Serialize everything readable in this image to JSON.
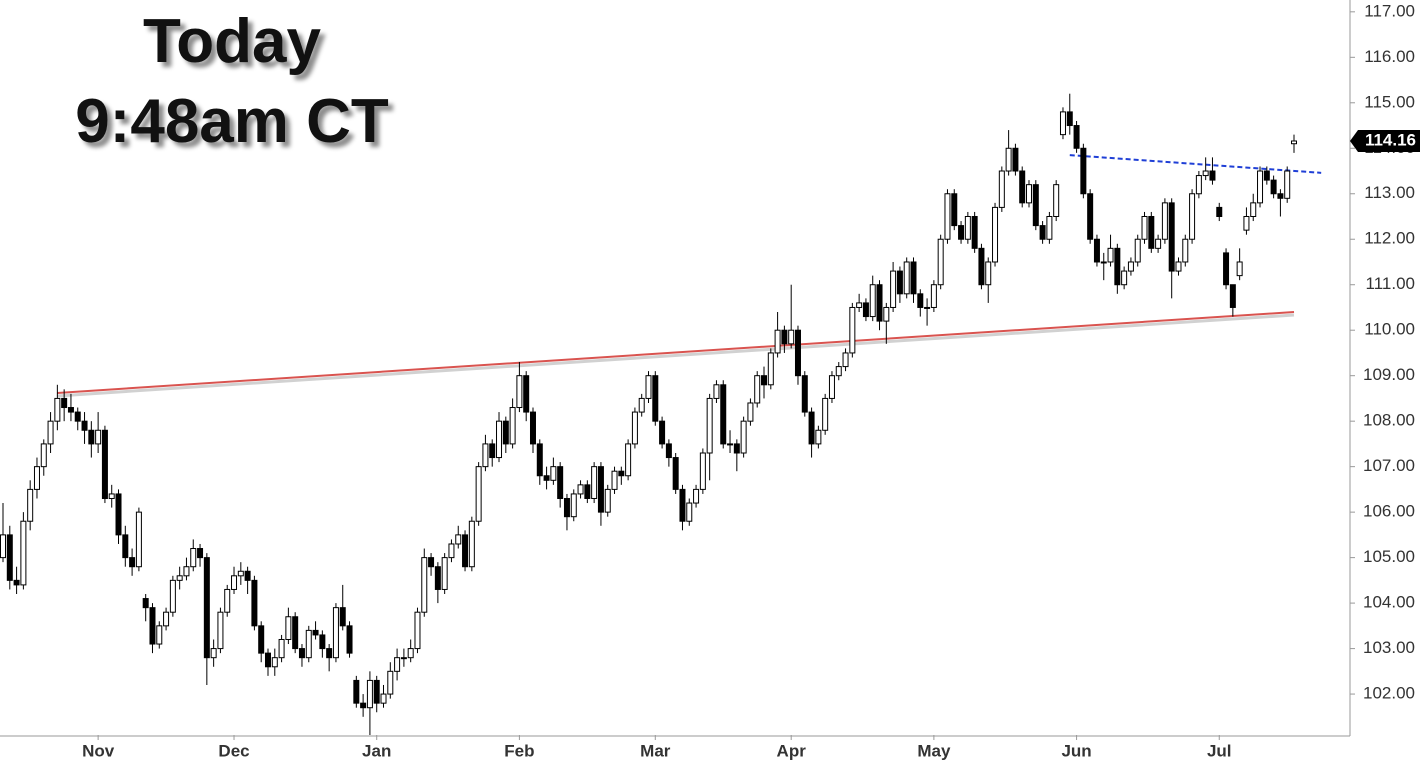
{
  "chart_data": {
    "type": "candlestick",
    "title": "Today",
    "subtitle": "9:48am CT",
    "up_color": "#ffffff",
    "down_color": "#000000",
    "outline_color": "#000000",
    "ylim": [
      101.1,
      117.26
    ],
    "yticks": [
      {
        "value": 102,
        "label": "102.00"
      },
      {
        "value": 103,
        "label": "103.00"
      },
      {
        "value": 104,
        "label": "104.00"
      },
      {
        "value": 105,
        "label": "105.00"
      },
      {
        "value": 106,
        "label": "106.00"
      },
      {
        "value": 107,
        "label": "107.00"
      },
      {
        "value": 108,
        "label": "108.00"
      },
      {
        "value": 109,
        "label": "109.00"
      },
      {
        "value": 110,
        "label": "110.00"
      },
      {
        "value": 111,
        "label": "111.00"
      },
      {
        "value": 112,
        "label": "112.00"
      },
      {
        "value": 113,
        "label": "113.00"
      },
      {
        "value": 114,
        "label": "114.00"
      },
      {
        "value": 115,
        "label": "115.00"
      },
      {
        "value": 116,
        "label": "116.00"
      },
      {
        "value": 117,
        "label": "117.00"
      }
    ],
    "categories": [
      null,
      null,
      null,
      null,
      null,
      null,
      null,
      null,
      null,
      null,
      null,
      null,
      null,
      null,
      "Nov",
      null,
      null,
      null,
      null,
      null,
      null,
      null,
      null,
      null,
      null,
      null,
      null,
      null,
      null,
      null,
      null,
      null,
      null,
      null,
      "Dec",
      null,
      null,
      null,
      null,
      null,
      null,
      null,
      null,
      null,
      null,
      null,
      null,
      null,
      null,
      null,
      null,
      null,
      null,
      null,
      null,
      "Jan",
      null,
      null,
      null,
      null,
      null,
      null,
      null,
      null,
      null,
      null,
      null,
      null,
      null,
      null,
      null,
      null,
      null,
      null,
      null,
      null,
      "Feb",
      null,
      null,
      null,
      null,
      null,
      null,
      null,
      null,
      null,
      null,
      null,
      null,
      null,
      null,
      null,
      null,
      null,
      null,
      null,
      "Mar",
      null,
      null,
      null,
      null,
      null,
      null,
      null,
      null,
      null,
      null,
      null,
      null,
      null,
      null,
      null,
      null,
      null,
      null,
      null,
      "Apr",
      null,
      null,
      null,
      null,
      null,
      null,
      null,
      null,
      null,
      null,
      null,
      null,
      null,
      null,
      null,
      null,
      null,
      null,
      null,
      null,
      "May",
      null,
      null,
      null,
      null,
      null,
      null,
      null,
      null,
      null,
      null,
      null,
      null,
      null,
      null,
      null,
      null,
      null,
      null,
      null,
      null,
      "Jun",
      null,
      null,
      null,
      null,
      null,
      null,
      null,
      null,
      null,
      null,
      null,
      null,
      null,
      null,
      null,
      null,
      null,
      null,
      null,
      null,
      "Jul",
      null,
      null,
      null,
      null,
      null,
      null,
      null,
      null,
      null,
      null,
      null
    ],
    "ohlc": [
      [
        105.0,
        106.2,
        104.9,
        105.5
      ],
      [
        105.5,
        105.7,
        104.3,
        104.5
      ],
      [
        104.5,
        104.8,
        104.2,
        104.4
      ],
      [
        104.4,
        106.0,
        104.3,
        105.8
      ],
      [
        105.8,
        106.7,
        105.6,
        106.5
      ],
      [
        106.5,
        107.2,
        106.3,
        107.0
      ],
      [
        107.0,
        107.6,
        106.8,
        107.5
      ],
      [
        107.5,
        108.2,
        107.3,
        108.0
      ],
      [
        108.0,
        108.8,
        107.8,
        108.5
      ],
      [
        108.5,
        108.7,
        108.0,
        108.3
      ],
      [
        108.3,
        108.6,
        108.0,
        108.2
      ],
      [
        108.2,
        108.3,
        107.8,
        108.0
      ],
      [
        108.0,
        108.2,
        107.5,
        107.8
      ],
      [
        107.8,
        108.0,
        107.2,
        107.5
      ],
      [
        107.5,
        108.2,
        107.3,
        107.8
      ],
      [
        107.8,
        107.9,
        106.2,
        106.3
      ],
      [
        106.3,
        106.6,
        106.1,
        106.4
      ],
      [
        106.4,
        106.5,
        105.3,
        105.5
      ],
      [
        105.5,
        105.7,
        104.8,
        105.0
      ],
      [
        105.0,
        105.2,
        104.6,
        104.8
      ],
      [
        104.8,
        106.1,
        104.7,
        106.0
      ],
      [
        104.1,
        104.2,
        103.6,
        103.9
      ],
      [
        103.9,
        104.0,
        102.9,
        103.1
      ],
      [
        103.1,
        103.6,
        103.0,
        103.5
      ],
      [
        103.5,
        103.9,
        103.4,
        103.8
      ],
      [
        103.8,
        104.6,
        103.7,
        104.5
      ],
      [
        104.5,
        104.8,
        104.3,
        104.6
      ],
      [
        104.6,
        105.0,
        104.5,
        104.8
      ],
      [
        104.8,
        105.4,
        104.7,
        105.2
      ],
      [
        105.2,
        105.3,
        104.8,
        105.0
      ],
      [
        105.0,
        105.1,
        102.2,
        102.8
      ],
      [
        102.8,
        103.2,
        102.6,
        103.0
      ],
      [
        103.0,
        103.9,
        102.9,
        103.8
      ],
      [
        103.8,
        104.4,
        103.7,
        104.3
      ],
      [
        104.3,
        104.8,
        104.2,
        104.6
      ],
      [
        104.6,
        104.9,
        104.4,
        104.7
      ],
      [
        104.7,
        104.8,
        104.2,
        104.5
      ],
      [
        104.5,
        104.6,
        103.4,
        103.5
      ],
      [
        103.5,
        103.6,
        102.7,
        102.9
      ],
      [
        102.9,
        103.0,
        102.4,
        102.6
      ],
      [
        102.6,
        103.0,
        102.4,
        102.8
      ],
      [
        102.8,
        103.3,
        102.7,
        103.2
      ],
      [
        103.2,
        103.9,
        103.1,
        103.7
      ],
      [
        103.7,
        103.8,
        102.9,
        103.0
      ],
      [
        103.0,
        103.1,
        102.6,
        102.8
      ],
      [
        102.8,
        103.5,
        102.7,
        103.4
      ],
      [
        103.4,
        103.6,
        103.2,
        103.3
      ],
      [
        103.3,
        103.4,
        102.8,
        103.0
      ],
      [
        103.0,
        103.1,
        102.5,
        102.8
      ],
      [
        102.8,
        104.0,
        102.7,
        103.9
      ],
      [
        103.9,
        104.4,
        103.4,
        103.5
      ],
      [
        103.5,
        103.6,
        102.8,
        102.9
      ],
      [
        102.3,
        102.4,
        101.7,
        101.8
      ],
      [
        101.8,
        102.0,
        101.5,
        101.7
      ],
      [
        101.7,
        102.5,
        101.1,
        102.3
      ],
      [
        102.3,
        102.4,
        101.6,
        101.8
      ],
      [
        101.8,
        102.2,
        101.7,
        102.0
      ],
      [
        102.0,
        102.7,
        101.9,
        102.5
      ],
      [
        102.5,
        103.0,
        102.3,
        102.8
      ],
      [
        102.8,
        103.0,
        102.6,
        102.8
      ],
      [
        102.8,
        103.2,
        102.7,
        103.0
      ],
      [
        103.0,
        103.9,
        102.9,
        103.8
      ],
      [
        103.8,
        105.2,
        103.7,
        105.0
      ],
      [
        105.0,
        105.1,
        104.6,
        104.8
      ],
      [
        104.8,
        104.9,
        104.0,
        104.3
      ],
      [
        104.3,
        105.1,
        104.2,
        105.0
      ],
      [
        105.0,
        105.4,
        104.9,
        105.3
      ],
      [
        105.3,
        105.7,
        105.2,
        105.5
      ],
      [
        105.5,
        105.6,
        104.7,
        104.8
      ],
      [
        104.8,
        105.9,
        104.7,
        105.8
      ],
      [
        105.8,
        107.1,
        105.7,
        107.0
      ],
      [
        107.0,
        107.7,
        106.9,
        107.5
      ],
      [
        107.5,
        107.6,
        107.0,
        107.2
      ],
      [
        107.2,
        108.2,
        107.1,
        108.0
      ],
      [
        108.0,
        108.1,
        107.3,
        107.5
      ],
      [
        107.5,
        108.5,
        107.4,
        108.3
      ],
      [
        108.3,
        109.3,
        108.2,
        109.0
      ],
      [
        109.0,
        109.1,
        108.0,
        108.2
      ],
      [
        108.2,
        108.3,
        107.3,
        107.5
      ],
      [
        107.5,
        107.6,
        106.6,
        106.8
      ],
      [
        106.8,
        107.0,
        106.5,
        106.7
      ],
      [
        106.7,
        107.2,
        106.6,
        107.0
      ],
      [
        107.0,
        107.1,
        106.1,
        106.3
      ],
      [
        106.3,
        106.4,
        105.6,
        105.9
      ],
      [
        105.9,
        106.5,
        105.8,
        106.4
      ],
      [
        106.4,
        106.7,
        106.3,
        106.6
      ],
      [
        106.6,
        106.7,
        106.2,
        106.3
      ],
      [
        106.3,
        107.1,
        106.2,
        107.0
      ],
      [
        107.0,
        107.1,
        105.7,
        106.0
      ],
      [
        106.0,
        106.6,
        105.9,
        106.5
      ],
      [
        106.5,
        107.0,
        106.4,
        106.9
      ],
      [
        106.9,
        107.0,
        106.6,
        106.8
      ],
      [
        106.8,
        107.6,
        106.7,
        107.5
      ],
      [
        107.5,
        108.3,
        107.4,
        108.2
      ],
      [
        108.2,
        108.6,
        108.1,
        108.5
      ],
      [
        108.5,
        109.1,
        108.4,
        109.0
      ],
      [
        109.0,
        109.1,
        107.9,
        108.0
      ],
      [
        108.0,
        108.1,
        107.4,
        107.5
      ],
      [
        107.5,
        107.6,
        107.0,
        107.2
      ],
      [
        107.2,
        107.3,
        106.4,
        106.5
      ],
      [
        106.5,
        106.6,
        105.6,
        105.8
      ],
      [
        105.8,
        106.3,
        105.7,
        106.2
      ],
      [
        106.2,
        106.6,
        106.1,
        106.5
      ],
      [
        106.5,
        107.4,
        106.4,
        107.3
      ],
      [
        107.3,
        108.6,
        106.7,
        108.5
      ],
      [
        108.5,
        108.9,
        108.4,
        108.8
      ],
      [
        108.8,
        108.9,
        107.4,
        107.5
      ],
      [
        107.5,
        107.8,
        107.3,
        107.5
      ],
      [
        107.5,
        107.6,
        106.9,
        107.3
      ],
      [
        107.3,
        108.1,
        107.2,
        108.0
      ],
      [
        108.0,
        108.5,
        107.9,
        108.4
      ],
      [
        108.4,
        109.1,
        108.3,
        109.0
      ],
      [
        109.0,
        109.2,
        108.5,
        108.8
      ],
      [
        108.8,
        109.6,
        108.7,
        109.5
      ],
      [
        109.5,
        110.4,
        109.4,
        110.0
      ],
      [
        110.0,
        110.1,
        109.5,
        109.7
      ],
      [
        109.7,
        111.0,
        109.6,
        110.0
      ],
      [
        110.0,
        110.1,
        108.8,
        109.0
      ],
      [
        109.0,
        109.1,
        108.1,
        108.2
      ],
      [
        108.2,
        108.3,
        107.2,
        107.5
      ],
      [
        107.5,
        107.9,
        107.4,
        107.8
      ],
      [
        107.8,
        108.6,
        107.7,
        108.5
      ],
      [
        108.5,
        109.1,
        108.4,
        109.0
      ],
      [
        109.0,
        109.3,
        108.9,
        109.2
      ],
      [
        109.2,
        109.6,
        109.1,
        109.5
      ],
      [
        109.5,
        110.6,
        109.4,
        110.5
      ],
      [
        110.5,
        110.8,
        110.4,
        110.6
      ],
      [
        110.6,
        110.7,
        110.2,
        110.3
      ],
      [
        110.3,
        111.2,
        110.2,
        111.0
      ],
      [
        111.0,
        111.1,
        110.0,
        110.2
      ],
      [
        110.2,
        110.6,
        109.7,
        110.5
      ],
      [
        110.5,
        111.5,
        110.4,
        111.3
      ],
      [
        111.3,
        111.4,
        110.6,
        110.8
      ],
      [
        110.8,
        111.6,
        110.7,
        111.5
      ],
      [
        111.5,
        111.6,
        110.6,
        110.8
      ],
      [
        110.8,
        110.9,
        110.3,
        110.5
      ],
      [
        110.5,
        110.7,
        110.1,
        110.5
      ],
      [
        110.5,
        111.1,
        110.4,
        111.0
      ],
      [
        111.0,
        112.1,
        110.9,
        112.0
      ],
      [
        112.0,
        113.1,
        111.9,
        113.0
      ],
      [
        113.0,
        113.1,
        112.2,
        112.3
      ],
      [
        112.3,
        112.4,
        111.9,
        112.0
      ],
      [
        112.0,
        112.6,
        111.9,
        112.5
      ],
      [
        112.5,
        112.6,
        111.7,
        111.8
      ],
      [
        111.8,
        111.9,
        110.9,
        111.0
      ],
      [
        111.0,
        111.6,
        110.6,
        111.5
      ],
      [
        111.5,
        112.8,
        111.4,
        112.7
      ],
      [
        112.7,
        113.6,
        112.6,
        113.5
      ],
      [
        113.5,
        114.4,
        113.4,
        114.0
      ],
      [
        114.0,
        114.1,
        113.4,
        113.5
      ],
      [
        113.5,
        113.6,
        112.7,
        112.8
      ],
      [
        112.8,
        113.3,
        112.7,
        113.2
      ],
      [
        113.2,
        113.3,
        112.2,
        112.3
      ],
      [
        112.3,
        112.4,
        111.9,
        112.0
      ],
      [
        112.0,
        112.6,
        111.9,
        112.5
      ],
      [
        112.5,
        113.3,
        112.4,
        113.2
      ],
      [
        114.3,
        114.9,
        114.2,
        114.8
      ],
      [
        114.8,
        115.2,
        114.3,
        114.5
      ],
      [
        114.5,
        114.6,
        113.9,
        114.0
      ],
      [
        114.0,
        114.1,
        112.9,
        113.0
      ],
      [
        113.0,
        113.1,
        111.9,
        112.0
      ],
      [
        112.0,
        112.1,
        111.4,
        111.5
      ],
      [
        111.5,
        111.7,
        111.1,
        111.5
      ],
      [
        111.5,
        112.1,
        111.4,
        111.8
      ],
      [
        111.8,
        111.9,
        110.8,
        111.0
      ],
      [
        111.0,
        111.4,
        110.9,
        111.3
      ],
      [
        111.3,
        111.6,
        111.2,
        111.5
      ],
      [
        111.5,
        112.1,
        111.4,
        112.0
      ],
      [
        112.0,
        112.6,
        111.9,
        112.5
      ],
      [
        112.5,
        112.6,
        111.7,
        111.8
      ],
      [
        111.8,
        112.1,
        111.7,
        112.0
      ],
      [
        112.0,
        112.9,
        111.9,
        112.8
      ],
      [
        112.8,
        112.9,
        110.7,
        111.3
      ],
      [
        111.3,
        111.6,
        111.2,
        111.5
      ],
      [
        111.5,
        112.1,
        111.4,
        112.0
      ],
      [
        112.0,
        113.1,
        111.9,
        113.0
      ],
      [
        113.0,
        113.5,
        112.9,
        113.4
      ],
      [
        113.4,
        113.8,
        113.3,
        113.5
      ],
      [
        113.5,
        113.8,
        113.2,
        113.3
      ],
      [
        112.7,
        112.8,
        112.4,
        112.5
      ],
      [
        111.7,
        111.8,
        110.9,
        111.0
      ],
      [
        111.0,
        111.0,
        110.3,
        110.5
      ],
      [
        111.2,
        111.8,
        111.1,
        111.5
      ],
      [
        112.2,
        112.7,
        112.1,
        112.5
      ],
      [
        112.5,
        113.0,
        112.4,
        112.8
      ],
      [
        112.8,
        113.6,
        112.7,
        113.5
      ],
      [
        113.5,
        113.6,
        113.2,
        113.3
      ],
      [
        113.3,
        113.4,
        112.9,
        113.0
      ],
      [
        113.0,
        113.1,
        112.5,
        112.9
      ],
      [
        112.9,
        113.6,
        112.8,
        113.5
      ],
      [
        114.1,
        114.3,
        113.9,
        114.16
      ]
    ],
    "trendlines": [
      {
        "color": "#d9534f",
        "style": "solid",
        "start": [
          8,
          108.62
        ],
        "end": [
          190,
          110.4
        ]
      },
      {
        "color": "#1f3fd6",
        "style": "dashed",
        "start": [
          157,
          113.85
        ],
        "end": [
          194,
          113.46
        ]
      }
    ],
    "last_price_color": "#000000"
  }
}
